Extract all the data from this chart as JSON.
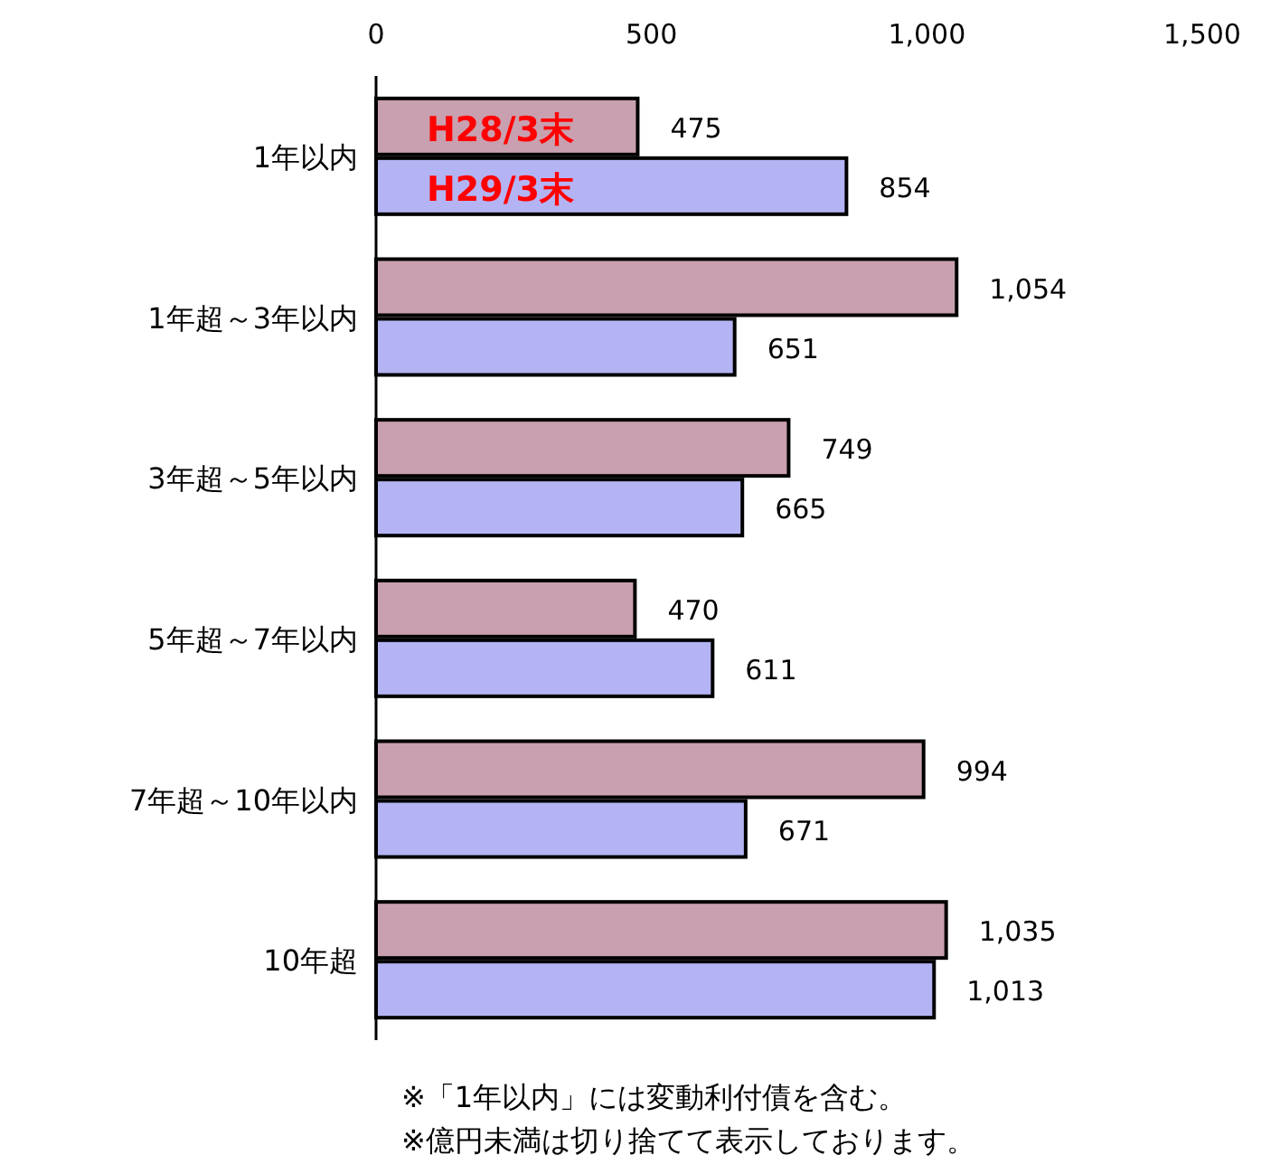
{
  "chart_data": {
    "type": "bar",
    "orientation": "horizontal",
    "categories": [
      "1年以内",
      "1年超～3年以内",
      "3年超～5年以内",
      "5年超～7年以内",
      "7年超～10年以内",
      "10年超"
    ],
    "series": [
      {
        "name": "H28/3末",
        "color": "#c8a0b0",
        "values": [
          475,
          1054,
          749,
          470,
          994,
          1035
        ],
        "value_labels": [
          "475",
          "1,054",
          "749",
          "470",
          "994",
          "1,035"
        ]
      },
      {
        "name": "H29/3末",
        "color": "#b4b4f4",
        "values": [
          854,
          651,
          665,
          611,
          671,
          1013
        ],
        "value_labels": [
          "854",
          "651",
          "665",
          "611",
          "671",
          "1,013"
        ]
      }
    ],
    "xlim": [
      0,
      1500
    ],
    "xticks": [
      0,
      500,
      {
        "value": 1000,
        "label": "1,000"
      },
      {
        "value": 1500,
        "label": "1,500"
      }
    ],
    "legend": "top left",
    "grid": false,
    "annotations": [
      "※「1年以内」には変動利付債を含む。",
      "※億円未満は切り捨てて表示しております。"
    ]
  }
}
